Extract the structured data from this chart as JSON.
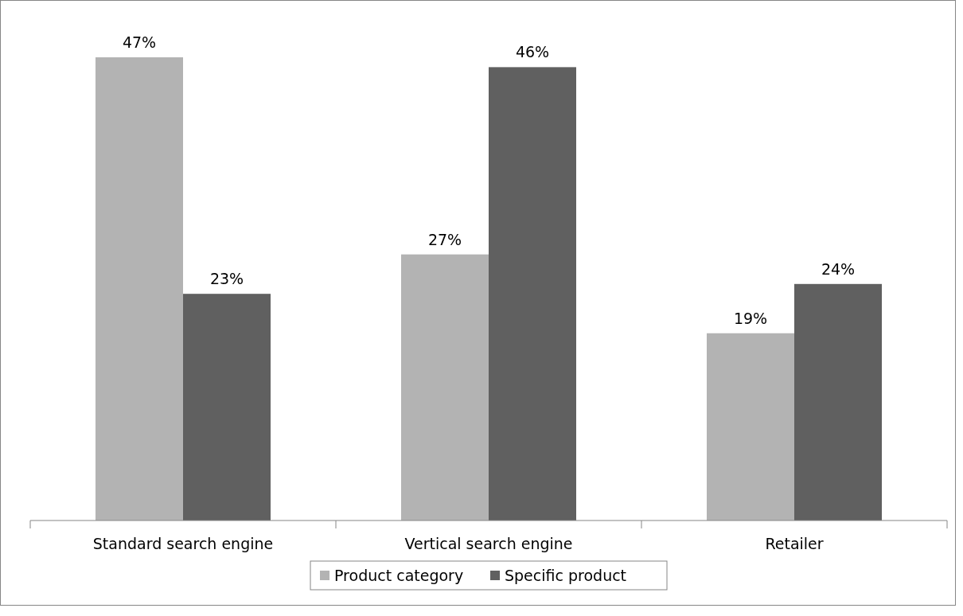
{
  "chart_data": {
    "type": "bar",
    "categories": [
      "Standard search engine",
      "Vertical search engine",
      "Retailer"
    ],
    "series": [
      {
        "name": "Product category",
        "color": "#b3b3b3",
        "values": [
          47,
          27,
          19
        ],
        "value_labels": [
          "47%",
          "27%",
          "19%"
        ]
      },
      {
        "name": "Specific product",
        "color": "#606060",
        "values": [
          23,
          46,
          24
        ],
        "value_labels": [
          "23%",
          "46%",
          "24%"
        ]
      }
    ],
    "legend": "bottom",
    "grid": false
  }
}
